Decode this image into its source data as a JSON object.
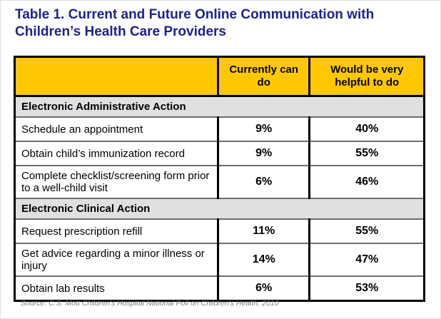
{
  "page": {
    "title": "Table 1. Current and Future Online Communication with Children’s Health Care Providers",
    "source_note": "Source: C.S. Mott Children’s Hospital National Poll on Children’s Health, 2010"
  },
  "colors": {
    "title_text": "#1f2191",
    "header_bg": "#ffc800",
    "section_bg": "#e0e0e0",
    "outer_border": "#000000",
    "row_border": "#6e6e6e",
    "source_text": "#7d7d7d"
  },
  "chart_data": {
    "type": "table",
    "title": "Table 1. Current and Future Online Communication with Children’s Health Care Providers",
    "columns": [
      "",
      "Currently can do",
      "Would be very helpful to do"
    ],
    "sections": [
      {
        "name": "Electronic Administrative Action",
        "rows": [
          {
            "label": "Schedule an appointment",
            "currently_can_do": "9%",
            "would_be_very_helpful": "40%"
          },
          {
            "label": "Obtain child’s immunization record",
            "currently_can_do": "9%",
            "would_be_very_helpful": "55%"
          },
          {
            "label": "Complete checklist/screening form prior to a well-child visit",
            "currently_can_do": "6%",
            "would_be_very_helpful": "46%"
          }
        ]
      },
      {
        "name": "Electronic Clinical Action",
        "rows": [
          {
            "label": "Request prescription refill",
            "currently_can_do": "11%",
            "would_be_very_helpful": "55%"
          },
          {
            "label": "Get advice regarding a minor illness or injury",
            "currently_can_do": "14%",
            "would_be_very_helpful": "47%"
          },
          {
            "label": "Obtain lab results",
            "currently_can_do": "6%",
            "would_be_very_helpful": "53%"
          }
        ]
      }
    ],
    "source": "Source: C.S. Mott Children’s Hospital National Poll on Children’s Health, 2010"
  }
}
